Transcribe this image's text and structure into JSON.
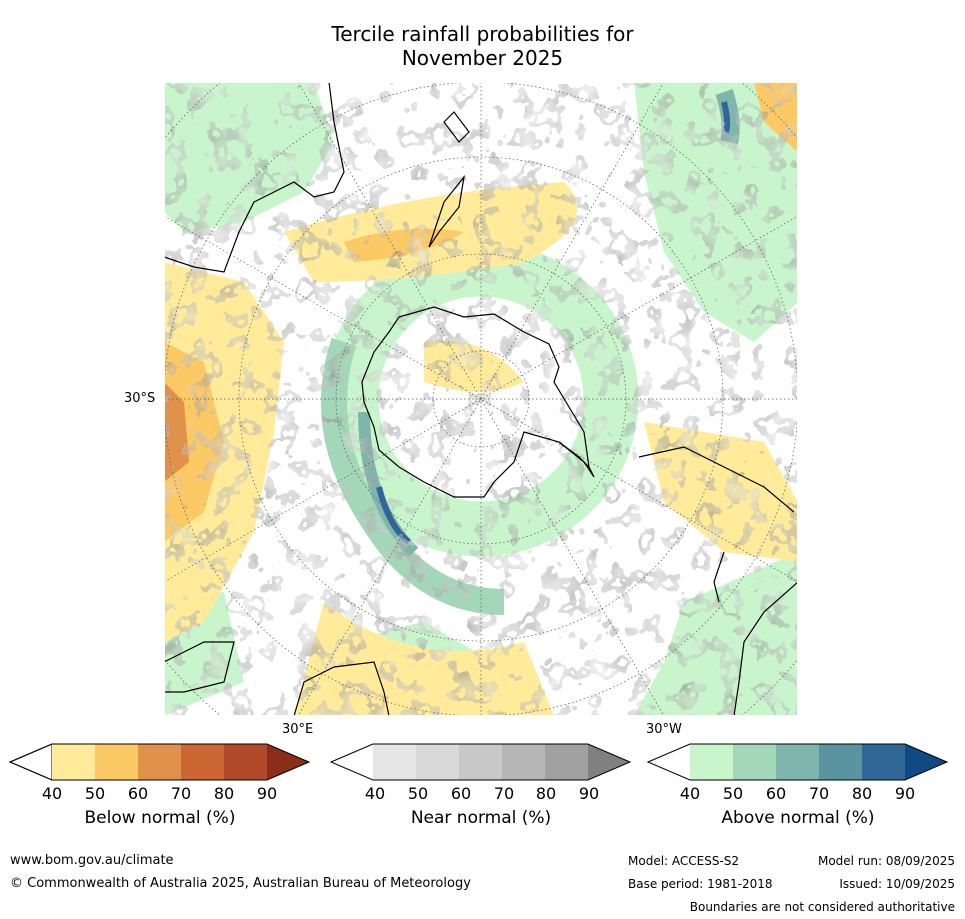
{
  "title_line1": "Tercile rainfall probabilities for",
  "title_line2": "November 2025",
  "map_labels": {
    "lat_30s": "30°S",
    "lon_30e": "30°E",
    "lon_30w": "30°W"
  },
  "colorbars": [
    {
      "title": "Below normal (%)",
      "ticks": [
        "40",
        "50",
        "60",
        "70",
        "80",
        "90"
      ],
      "colors": [
        "#ffffff",
        "#ffeb99",
        "#fdc964",
        "#e0924a",
        "#cc6633",
        "#b04a2a",
        "#8c2d1a"
      ]
    },
    {
      "title": "Near normal (%)",
      "ticks": [
        "40",
        "50",
        "60",
        "70",
        "80",
        "90"
      ],
      "colors": [
        "#ffffff",
        "#e6e6e6",
        "#d9d9d9",
        "#c8c8c8",
        "#b5b5b5",
        "#a0a0a0",
        "#808080"
      ]
    },
    {
      "title": "Above normal (%)",
      "ticks": [
        "40",
        "50",
        "60",
        "70",
        "80",
        "90"
      ],
      "colors": [
        "#ffffff",
        "#c8f5cc",
        "#a4d6b8",
        "#7fb5ac",
        "#5a94a0",
        "#316699",
        "#104a84"
      ]
    }
  ],
  "footer": {
    "website": "www.bom.gov.au/climate",
    "copyright": "© Commonwealth of Australia 2025, Australian Bureau of Meteorology",
    "model": "Model: ACCESS-S2",
    "model_run": "Model run: 08/09/2025",
    "base_period": "Base period: 1981-2018",
    "issued": "Issued: 10/09/2025",
    "disclaimer": "Boundaries are not considered authoritative"
  }
}
